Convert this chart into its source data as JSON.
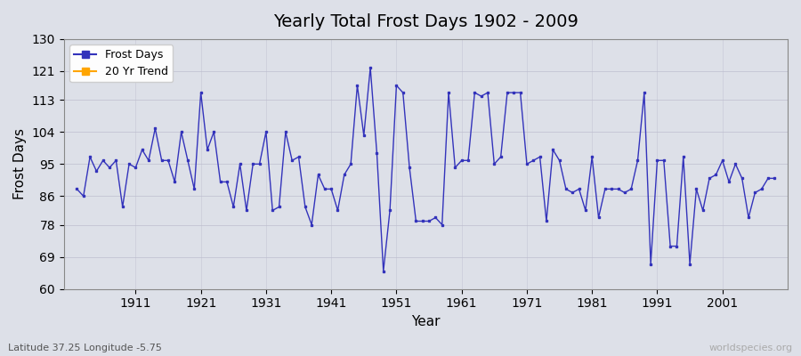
{
  "title": "Yearly Total Frost Days 1902 - 2009",
  "xlabel": "Year",
  "ylabel": "Frost Days",
  "lat_lon_label": "Latitude 37.25 Longitude -5.75",
  "watermark": "worldspecies.org",
  "ylim": [
    60,
    130
  ],
  "yticks": [
    60,
    69,
    78,
    86,
    95,
    104,
    113,
    121,
    130
  ],
  "bg_color": "#dde0e8",
  "plot_bg_color": "#dde0e8",
  "line_color": "#3333bb",
  "legend_frost_color": "#3333bb",
  "legend_trend_color": "#ffa500",
  "years": [
    1902,
    1903,
    1904,
    1905,
    1906,
    1907,
    1908,
    1909,
    1910,
    1911,
    1912,
    1913,
    1914,
    1915,
    1916,
    1917,
    1918,
    1919,
    1920,
    1921,
    1922,
    1923,
    1924,
    1925,
    1926,
    1927,
    1928,
    1929,
    1930,
    1931,
    1932,
    1933,
    1934,
    1935,
    1936,
    1937,
    1938,
    1939,
    1940,
    1941,
    1942,
    1943,
    1944,
    1945,
    1946,
    1947,
    1948,
    1949,
    1950,
    1951,
    1952,
    1953,
    1954,
    1955,
    1956,
    1957,
    1958,
    1959,
    1960,
    1961,
    1962,
    1963,
    1964,
    1965,
    1966,
    1967,
    1968,
    1969,
    1970,
    1971,
    1972,
    1973,
    1974,
    1975,
    1976,
    1977,
    1978,
    1979,
    1980,
    1981,
    1982,
    1983,
    1984,
    1985,
    1986,
    1987,
    1988,
    1989,
    1990,
    1991,
    1992,
    1993,
    1994,
    1995,
    1996,
    1997,
    1998,
    1999,
    2000,
    2001,
    2002,
    2003,
    2004,
    2005,
    2006,
    2007,
    2008,
    2009
  ],
  "values": [
    88,
    86,
    97,
    93,
    96,
    94,
    96,
    83,
    95,
    94,
    99,
    96,
    105,
    96,
    96,
    90,
    104,
    96,
    88,
    115,
    99,
    104,
    90,
    90,
    83,
    95,
    82,
    95,
    95,
    104,
    82,
    83,
    104,
    96,
    97,
    83,
    78,
    92,
    88,
    88,
    82,
    92,
    95,
    117,
    103,
    122,
    98,
    65,
    82,
    117,
    115,
    94,
    79,
    79,
    79,
    80,
    78,
    115,
    94,
    96,
    96,
    115,
    114,
    115,
    95,
    97,
    115,
    115,
    115,
    95,
    96,
    97,
    79,
    99,
    96,
    88,
    87,
    88,
    82,
    97,
    80,
    88,
    88,
    88,
    87,
    88,
    96,
    115,
    67,
    96,
    96,
    72,
    72,
    97,
    67,
    88,
    82,
    91,
    92,
    96,
    90,
    95,
    91,
    80,
    87,
    88,
    91,
    91
  ]
}
